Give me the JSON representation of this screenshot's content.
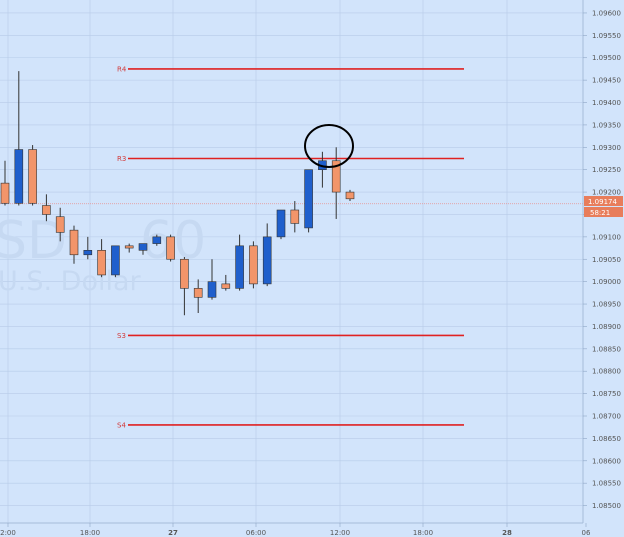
{
  "watermark": {
    "symbol": "SD",
    "interval": "60",
    "description": "U.S. Dollar"
  },
  "chart_data": {
    "type": "candlestick",
    "y_range": [
      1.0847,
      1.0962
    ],
    "y_ticks": [
      "1.09600",
      "1.09550",
      "1.09500",
      "1.09450",
      "1.09400",
      "1.09350",
      "1.09300",
      "1.09250",
      "1.09200",
      "1.09150",
      "1.09100",
      "1.09050",
      "1.09000",
      "1.08950",
      "1.08900",
      "1.08850",
      "1.08800",
      "1.08750",
      "1.08700",
      "1.08650",
      "1.08600",
      "1.08550",
      "1.08500"
    ],
    "x_tick_labels": [
      "2:00",
      "18:00",
      "27",
      "06:00",
      "12:00",
      "18:00",
      "28",
      "06"
    ],
    "levels": [
      {
        "name": "R4",
        "value": 1.09475,
        "color": "#e02222"
      },
      {
        "name": "R3",
        "value": 1.09275,
        "color": "#e02222"
      },
      {
        "name": "S3",
        "value": 1.0888,
        "color": "#e02222"
      },
      {
        "name": "S4",
        "value": 1.0868,
        "color": "#e02222"
      }
    ],
    "last_price": "1.09174",
    "timer": "58:21",
    "colors": {
      "bull": "#1f5fcc",
      "bear": "#f2956a",
      "candle_border": "#333333",
      "grid": "#b7cbe8",
      "level": "#e02222",
      "highlight": "#000000"
    },
    "candles": [
      {
        "o": 1.0922,
        "h": 1.0927,
        "l": 1.0917,
        "c": 1.09175
      },
      {
        "o": 1.09175,
        "h": 1.0947,
        "l": 1.0917,
        "c": 1.09295
      },
      {
        "o": 1.09295,
        "h": 1.09305,
        "l": 1.0917,
        "c": 1.09175
      },
      {
        "o": 1.0917,
        "h": 1.09195,
        "l": 1.09135,
        "c": 1.0915
      },
      {
        "o": 1.09145,
        "h": 1.09165,
        "l": 1.0909,
        "c": 1.0911
      },
      {
        "o": 1.09115,
        "h": 1.09125,
        "l": 1.0904,
        "c": 1.0906
      },
      {
        "o": 1.0906,
        "h": 1.091,
        "l": 1.0905,
        "c": 1.0907
      },
      {
        "o": 1.0907,
        "h": 1.09095,
        "l": 1.0901,
        "c": 1.09015
      },
      {
        "o": 1.09015,
        "h": 1.0908,
        "l": 1.0901,
        "c": 1.0908
      },
      {
        "o": 1.0908,
        "h": 1.09085,
        "l": 1.09065,
        "c": 1.09075
      },
      {
        "o": 1.0907,
        "h": 1.09085,
        "l": 1.0906,
        "c": 1.09085
      },
      {
        "o": 1.09085,
        "h": 1.09105,
        "l": 1.0908,
        "c": 1.091
      },
      {
        "o": 1.091,
        "h": 1.09105,
        "l": 1.09045,
        "c": 1.0905
      },
      {
        "o": 1.0905,
        "h": 1.09055,
        "l": 1.08925,
        "c": 1.08985
      },
      {
        "o": 1.08985,
        "h": 1.09005,
        "l": 1.0893,
        "c": 1.08965
      },
      {
        "o": 1.08965,
        "h": 1.0905,
        "l": 1.0896,
        "c": 1.09
      },
      {
        "o": 1.08995,
        "h": 1.09015,
        "l": 1.0898,
        "c": 1.08985
      },
      {
        "o": 1.08985,
        "h": 1.09105,
        "l": 1.0898,
        "c": 1.0908
      },
      {
        "o": 1.0908,
        "h": 1.0909,
        "l": 1.08985,
        "c": 1.08995
      },
      {
        "o": 1.08995,
        "h": 1.0913,
        "l": 1.0899,
        "c": 1.091
      },
      {
        "o": 1.091,
        "h": 1.0916,
        "l": 1.09095,
        "c": 1.0916
      },
      {
        "o": 1.0916,
        "h": 1.0918,
        "l": 1.0911,
        "c": 1.0913
      },
      {
        "o": 1.0912,
        "h": 1.0925,
        "l": 1.0911,
        "c": 1.0925
      },
      {
        "o": 1.0925,
        "h": 1.0929,
        "l": 1.0921,
        "c": 1.0927
      },
      {
        "o": 1.0927,
        "h": 1.093,
        "l": 1.0914,
        "c": 1.092
      },
      {
        "o": 1.092,
        "h": 1.09205,
        "l": 1.0918,
        "c": 1.09185
      }
    ]
  }
}
